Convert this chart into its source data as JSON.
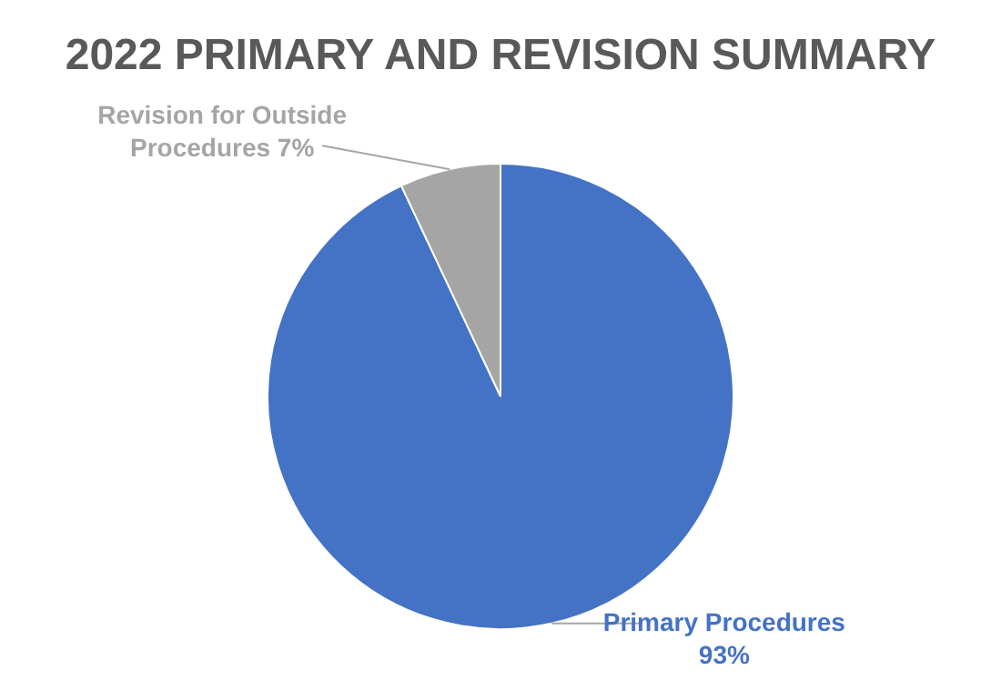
{
  "chart_data": {
    "type": "pie",
    "title": "2022 PRIMARY AND REVISION SUMMARY",
    "categories": [
      "Primary Procedures",
      "Revision for Outside Procedures"
    ],
    "values": [
      93,
      7
    ],
    "colors": [
      "#4472c4",
      "#a5a5a5"
    ],
    "value_labels": [
      "93%",
      "7%"
    ]
  }
}
